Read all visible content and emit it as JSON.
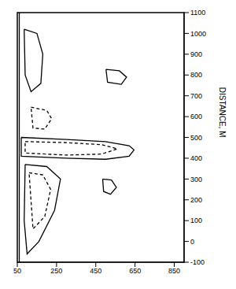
{
  "chart_data": {
    "type": "contour",
    "y_label": "DISTANCE, M",
    "xlim": [
      50,
      900
    ],
    "xticks": [
      50,
      250,
      450,
      650,
      850
    ],
    "ylim": [
      -100,
      1100
    ],
    "yticks": [
      -100,
      0,
      100,
      200,
      300,
      400,
      500,
      600,
      700,
      800,
      900,
      1000,
      1100
    ],
    "grid": false,
    "series": [
      {
        "line_style": "solid",
        "x": [
          60,
          60
        ],
        "values": [
          -100,
          1100
        ]
      },
      {
        "line_style": "solid",
        "x": [
          70,
          300,
          500,
          620,
          645,
          620,
          500,
          300,
          70,
          70
        ],
        "values": [
          500,
          490,
          480,
          460,
          440,
          410,
          395,
          400,
          410,
          500
        ]
      },
      {
        "line_style": "dashed",
        "x": [
          90,
          300,
          480,
          560,
          480,
          300,
          90,
          90
        ],
        "values": [
          480,
          475,
          465,
          445,
          420,
          415,
          425,
          480
        ]
      },
      {
        "line_style": "solid",
        "x": [
          85,
          150,
          180,
          170,
          120,
          90,
          85
        ],
        "values": [
          1020,
          1000,
          900,
          760,
          720,
          800,
          1020
        ]
      },
      {
        "line_style": "dashed",
        "x": [
          120,
          200,
          225,
          190,
          130,
          120
        ],
        "values": [
          645,
          630,
          590,
          540,
          545,
          645
        ]
      },
      {
        "line_style": "solid",
        "x": [
          502,
          570,
          607,
          580,
          510,
          502
        ],
        "values": [
          827,
          820,
          790,
          755,
          765,
          827
        ]
      },
      {
        "line_style": "solid",
        "x": [
          485,
          530,
          555,
          525,
          490,
          485
        ],
        "values": [
          300,
          295,
          260,
          227,
          240,
          300
        ]
      },
      {
        "line_style": "solid",
        "x": [
          90,
          200,
          270,
          240,
          160,
          100,
          85,
          90
        ],
        "values": [
          370,
          360,
          300,
          150,
          0,
          -60,
          100,
          370
        ]
      },
      {
        "line_style": "dashed",
        "x": [
          110,
          180,
          220,
          190,
          130,
          110
        ],
        "values": [
          330,
          320,
          250,
          120,
          60,
          330
        ]
      }
    ]
  }
}
